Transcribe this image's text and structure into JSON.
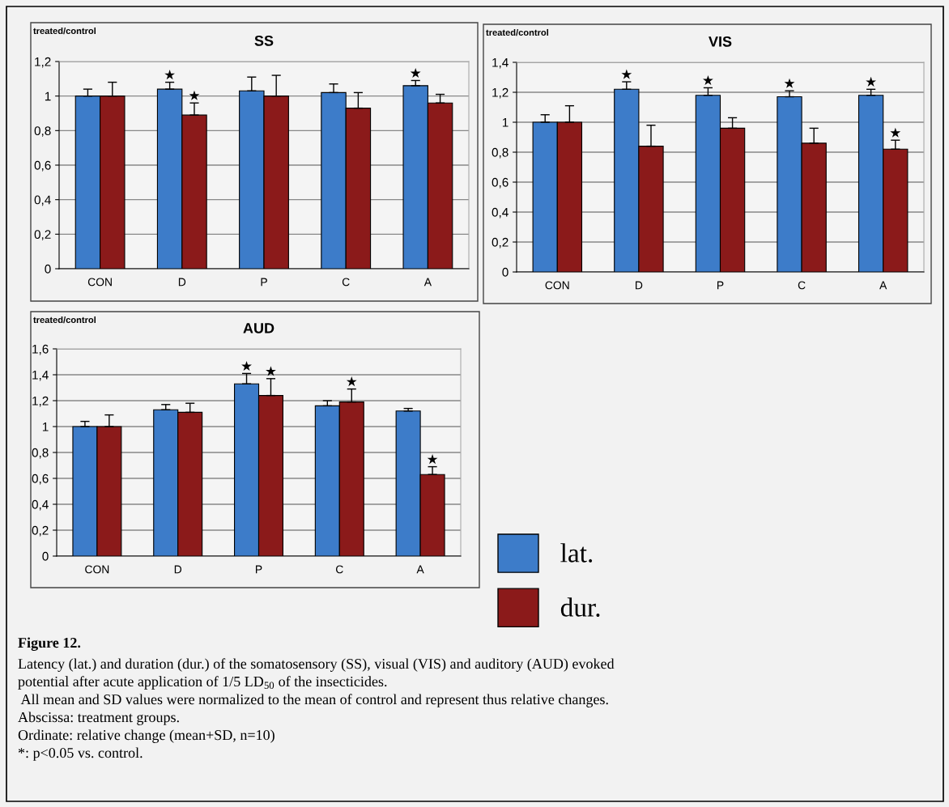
{
  "chart_data": [
    {
      "type": "bar",
      "title": "SS",
      "ylabel": "treated/control",
      "categories": [
        "CON",
        "D",
        "P",
        "C",
        "A"
      ],
      "ylim": [
        0,
        1.2
      ],
      "yticks": [
        0,
        {
          "value": 0.2,
          "label": "0,2"
        },
        {
          "value": 0.4,
          "label": "0,4"
        },
        {
          "value": 0.6,
          "label": "0,6"
        },
        {
          "value": 0.8,
          "label": "0,8"
        },
        1,
        {
          "value": 1.2,
          "label": "1,2"
        }
      ],
      "grid": "y",
      "series": [
        {
          "color": "#3d7cc9",
          "values": [
            1.0,
            1.04,
            1.03,
            1.02,
            1.06
          ],
          "errors": [
            [
              1.0,
              1.04
            ],
            [
              1.04,
              1.08
            ],
            [
              1.03,
              1.11
            ],
            [
              1.02,
              1.07
            ],
            [
              1.06,
              1.09
            ]
          ]
        },
        {
          "color": "#8b1a1a",
          "values": [
            1.0,
            0.89,
            1.0,
            0.93,
            0.96
          ],
          "errors": [
            [
              1.0,
              1.08
            ],
            [
              0.89,
              0.96
            ],
            [
              1.0,
              1.12
            ],
            [
              0.93,
              1.02
            ],
            [
              0.96,
              1.01
            ]
          ]
        }
      ],
      "annotations": [
        {
          "text": "★",
          "x": "D",
          "y": 1.04
        },
        {
          "text": "★",
          "x": "D",
          "y": 0.89
        },
        {
          "text": "★",
          "x": "A",
          "y": 1.06
        }
      ]
    },
    {
      "type": "bar",
      "title": "VIS",
      "ylabel": "treated/control",
      "categories": [
        "CON",
        "D",
        "P",
        "C",
        "A"
      ],
      "ylim": [
        0,
        1.4
      ],
      "yticks": [
        0,
        {
          "value": 0.2,
          "label": "0,2"
        },
        {
          "value": 0.4,
          "label": "0,4"
        },
        {
          "value": 0.6,
          "label": "0,6"
        },
        {
          "value": 0.8,
          "label": "0,8"
        },
        1,
        {
          "value": 1.2,
          "label": "1,2"
        },
        {
          "value": 1.4,
          "label": "1,4"
        }
      ],
      "grid": "y",
      "series": [
        {
          "color": "#3d7cc9",
          "values": [
            1.0,
            1.22,
            1.18,
            1.17,
            1.18
          ],
          "errors": [
            [
              1.0,
              1.05
            ],
            [
              1.22,
              1.27
            ],
            [
              1.18,
              1.23
            ],
            [
              1.17,
              1.21
            ],
            [
              1.18,
              1.22
            ]
          ]
        },
        {
          "color": "#8b1a1a",
          "values": [
            1.0,
            0.84,
            0.96,
            0.86,
            0.82
          ],
          "errors": [
            [
              1.0,
              1.11
            ],
            [
              0.84,
              0.98
            ],
            [
              0.96,
              1.03
            ],
            [
              0.86,
              0.96
            ],
            [
              0.82,
              0.88
            ]
          ]
        }
      ],
      "annotations": [
        {
          "text": "★",
          "x": "D",
          "y": 1.22
        },
        {
          "text": "★",
          "x": "P",
          "y": 1.18
        },
        {
          "text": "★",
          "x": "C",
          "y": 1.17
        },
        {
          "text": "★",
          "x": "A",
          "y": 1.18
        },
        {
          "text": "★",
          "x": "A",
          "y": 0.82
        }
      ]
    },
    {
      "type": "bar",
      "title": "AUD",
      "ylabel": "treated/control",
      "categories": [
        "CON",
        "D",
        "P",
        "C",
        "A"
      ],
      "ylim": [
        0,
        1.6
      ],
      "yticks": [
        0,
        {
          "value": 0.2,
          "label": "0,2"
        },
        {
          "value": 0.4,
          "label": "0,4"
        },
        {
          "value": 0.6,
          "label": "0,6"
        },
        {
          "value": 0.8,
          "label": "0,8"
        },
        1,
        {
          "value": 1.2,
          "label": "1,2"
        },
        {
          "value": 1.4,
          "label": "1,4"
        },
        {
          "value": 1.6,
          "label": "1,6"
        }
      ],
      "grid": "y",
      "legend": "right",
      "series": [
        {
          "name": "lat.",
          "color": "#3d7cc9",
          "values": [
            1.0,
            1.13,
            1.33,
            1.16,
            1.12
          ],
          "errors": [
            [
              1.0,
              1.04
            ],
            [
              1.13,
              1.17
            ],
            [
              1.33,
              1.41
            ],
            [
              1.16,
              1.2
            ],
            [
              1.12,
              1.14
            ]
          ]
        },
        {
          "name": "dur.",
          "color": "#8b1a1a",
          "values": [
            1.0,
            1.11,
            1.24,
            1.19,
            0.63
          ],
          "errors": [
            [
              1.0,
              1.09
            ],
            [
              1.11,
              1.18
            ],
            [
              1.24,
              1.37
            ],
            [
              1.19,
              1.29
            ],
            [
              0.63,
              0.69
            ]
          ]
        }
      ],
      "annotations": [
        {
          "text": "★",
          "x": "P",
          "y": 1.33
        },
        {
          "text": "★",
          "x": "P",
          "y": 1.24
        },
        {
          "text": "★",
          "x": "C",
          "y": 1.19
        },
        {
          "text": "★",
          "x": "A",
          "y": 0.63
        },
        "Figure 12.",
        "Latency (lat.) and duration (dur.) of the somatosensory (SS), visual (VIS) and auditory (AUD) evoked",
        "potential after acute application of 1/5 LD$_{50}$ of the insecticides.",
        " All mean and SD values were normalized to the mean of control and represent thus relative changes.",
        "Abscissa: treatment groups.",
        "Ordinate: relative change (mean+SD, n=10)",
        "*: p<0.05 vs. control."
      ]
    }
  ]
}
